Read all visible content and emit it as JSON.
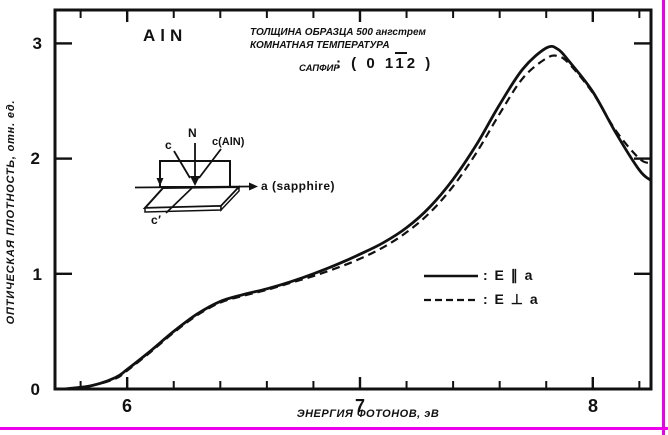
{
  "colors": {
    "ink": "#111111",
    "magenta": "#ec00ec",
    "background": "#ffffff"
  },
  "title": "AlN",
  "info": {
    "line1": "ТОЛЩИНА ОБРАЗЦА 500 ангстрем",
    "line2": "КОМНАТНАЯ ТЕМПЕРАТУРА",
    "substrate_label": "САПФИР",
    "orientation_prefix": ": ( 0 1",
    "orientation_barred": "1",
    "orientation_suffix": "2 )"
  },
  "axes": {
    "y_title": "ОПТИЧЕСКАЯ ПЛОТНОСТЬ, отн. ед.",
    "x_title": "ЭНЕРГИЯ ФОТОНОВ, эВ",
    "y_ticks": [
      "0",
      "1",
      "2",
      "3"
    ],
    "x_ticks": [
      "6",
      "7",
      "8"
    ]
  },
  "inset": {
    "n_label": "N",
    "c_label": "c",
    "c_aln_label": "c(AlN)",
    "a_label": "a (sapphire)",
    "c_prime_label": "c′"
  },
  "legend": {
    "entries": [
      {
        "style": "solid",
        "label": ": E ∥ a"
      },
      {
        "style": "dashed",
        "label": ": E ⊥ a"
      }
    ]
  },
  "chart_data": {
    "type": "line",
    "title": "AlN",
    "xlabel": "ЭНЕРГИЯ ФОТОНОВ, эВ",
    "ylabel": "ОПТИЧЕСКАЯ ПЛОТНОСТЬ, отн. ед.",
    "xlim": [
      5.69,
      8.25
    ],
    "ylim": [
      0,
      3.29
    ],
    "x_major_ticks": [
      6,
      7,
      8
    ],
    "x_minor_ticks": [
      5.8,
      6.2,
      6.4,
      6.6,
      6.8,
      7.2,
      7.4,
      7.6,
      7.8,
      8.2
    ],
    "y_major_ticks": [
      0,
      1,
      2,
      3
    ],
    "grid": false,
    "legend_position": "lower right",
    "annotations": [
      "ТОЛЩИНА ОБРАЗЦА 500 ангстрем",
      "КОМНАТНАЯ ТЕМПЕРАТУРА",
      "САПФИР : (011̄2)"
    ],
    "series": [
      {
        "name": "E ∥ a",
        "style": "solid",
        "points": [
          [
            5.73,
            0.0
          ],
          [
            5.85,
            0.03
          ],
          [
            5.95,
            0.1
          ],
          [
            6.0,
            0.17
          ],
          [
            6.1,
            0.33
          ],
          [
            6.2,
            0.5
          ],
          [
            6.3,
            0.65
          ],
          [
            6.4,
            0.76
          ],
          [
            6.5,
            0.82
          ],
          [
            6.6,
            0.87
          ],
          [
            6.7,
            0.93
          ],
          [
            6.8,
            1.0
          ],
          [
            6.9,
            1.08
          ],
          [
            7.0,
            1.17
          ],
          [
            7.1,
            1.27
          ],
          [
            7.2,
            1.4
          ],
          [
            7.3,
            1.58
          ],
          [
            7.4,
            1.82
          ],
          [
            7.5,
            2.12
          ],
          [
            7.6,
            2.47
          ],
          [
            7.7,
            2.78
          ],
          [
            7.8,
            2.96
          ],
          [
            7.85,
            2.95
          ],
          [
            7.9,
            2.84
          ],
          [
            8.0,
            2.58
          ],
          [
            8.1,
            2.22
          ],
          [
            8.2,
            1.9
          ],
          [
            8.25,
            1.81
          ]
        ]
      },
      {
        "name": "E ⊥ a",
        "style": "dashed",
        "points": [
          [
            5.73,
            0.0
          ],
          [
            5.85,
            0.03
          ],
          [
            5.95,
            0.09
          ],
          [
            6.0,
            0.16
          ],
          [
            6.1,
            0.32
          ],
          [
            6.2,
            0.49
          ],
          [
            6.3,
            0.64
          ],
          [
            6.4,
            0.75
          ],
          [
            6.5,
            0.81
          ],
          [
            6.6,
            0.86
          ],
          [
            6.7,
            0.92
          ],
          [
            6.8,
            0.98
          ],
          [
            6.9,
            1.05
          ],
          [
            7.0,
            1.13
          ],
          [
            7.1,
            1.23
          ],
          [
            7.2,
            1.36
          ],
          [
            7.3,
            1.53
          ],
          [
            7.4,
            1.76
          ],
          [
            7.5,
            2.05
          ],
          [
            7.6,
            2.39
          ],
          [
            7.7,
            2.7
          ],
          [
            7.8,
            2.87
          ],
          [
            7.85,
            2.89
          ],
          [
            7.9,
            2.82
          ],
          [
            8.0,
            2.57
          ],
          [
            8.1,
            2.24
          ],
          [
            8.2,
            2.0
          ],
          [
            8.25,
            1.96
          ]
        ]
      }
    ]
  }
}
